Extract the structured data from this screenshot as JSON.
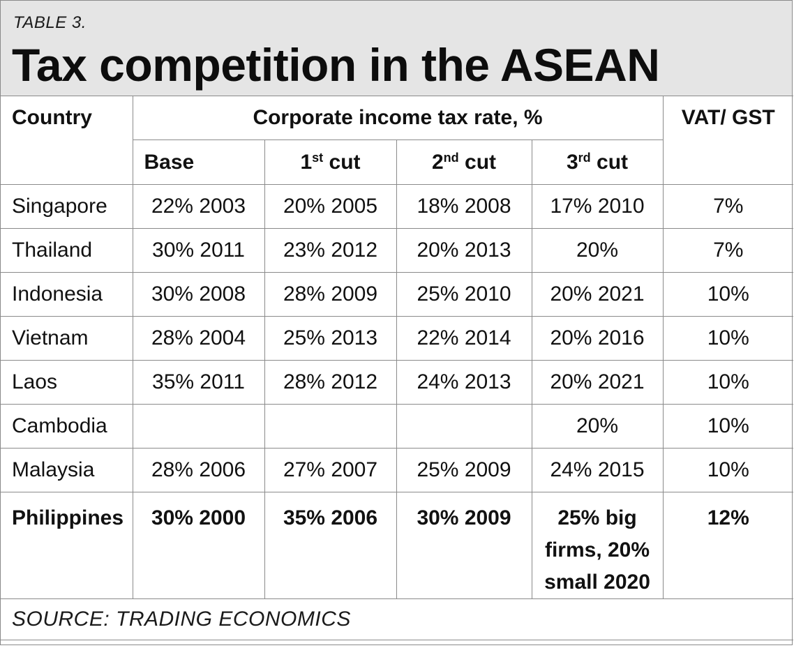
{
  "kicker": "TABLE 3.",
  "title": "Tax competition in the ASEAN",
  "columns": {
    "country": "Country",
    "cit_group": "Corporate income tax rate, %",
    "vat": "VAT/ GST",
    "base": "Base",
    "cut1_num": "1",
    "cut1_sup": "st",
    "cut2_num": "2",
    "cut2_sup": "nd",
    "cut3_num": "3",
    "cut3_sup": "rd",
    "cut_word": " cut"
  },
  "rows": [
    {
      "country": "Singapore",
      "base": "22% 2003",
      "cut1": "20% 2005",
      "cut2": "18% 2008",
      "cut3": "17% 2010",
      "vat": "7%"
    },
    {
      "country": "Thailand",
      "base": "30% 2011",
      "cut1": "23% 2012",
      "cut2": "20% 2013",
      "cut3": "20%",
      "vat": "7%"
    },
    {
      "country": "Indonesia",
      "base": "30% 2008",
      "cut1": "28% 2009",
      "cut2": "25% 2010",
      "cut3": "20% 2021",
      "vat": "10%"
    },
    {
      "country": "Vietnam",
      "base": "28% 2004",
      "cut1": "25% 2013",
      "cut2": "22% 2014",
      "cut3": "20% 2016",
      "vat": "10%"
    },
    {
      "country": "Laos",
      "base": "35% 2011",
      "cut1": "28% 2012",
      "cut2": "24% 2013",
      "cut3": "20% 2021",
      "vat": "10%"
    },
    {
      "country": "Cambodia",
      "base": "",
      "cut1": "",
      "cut2": "",
      "cut3": "20%",
      "vat": "10%"
    },
    {
      "country": "Malaysia",
      "base": "28% 2006",
      "cut1": "27% 2007",
      "cut2": "25% 2009",
      "cut3": "24% 2015",
      "vat": "10%"
    },
    {
      "country": "Philippines",
      "base": "30% 2000",
      "cut1": "35% 2006",
      "cut2": "30% 2009",
      "cut3": "25% big firms, 20% small 2020",
      "vat": "12%"
    }
  ],
  "source": "SOURCE: TRADING ECONOMICS"
}
